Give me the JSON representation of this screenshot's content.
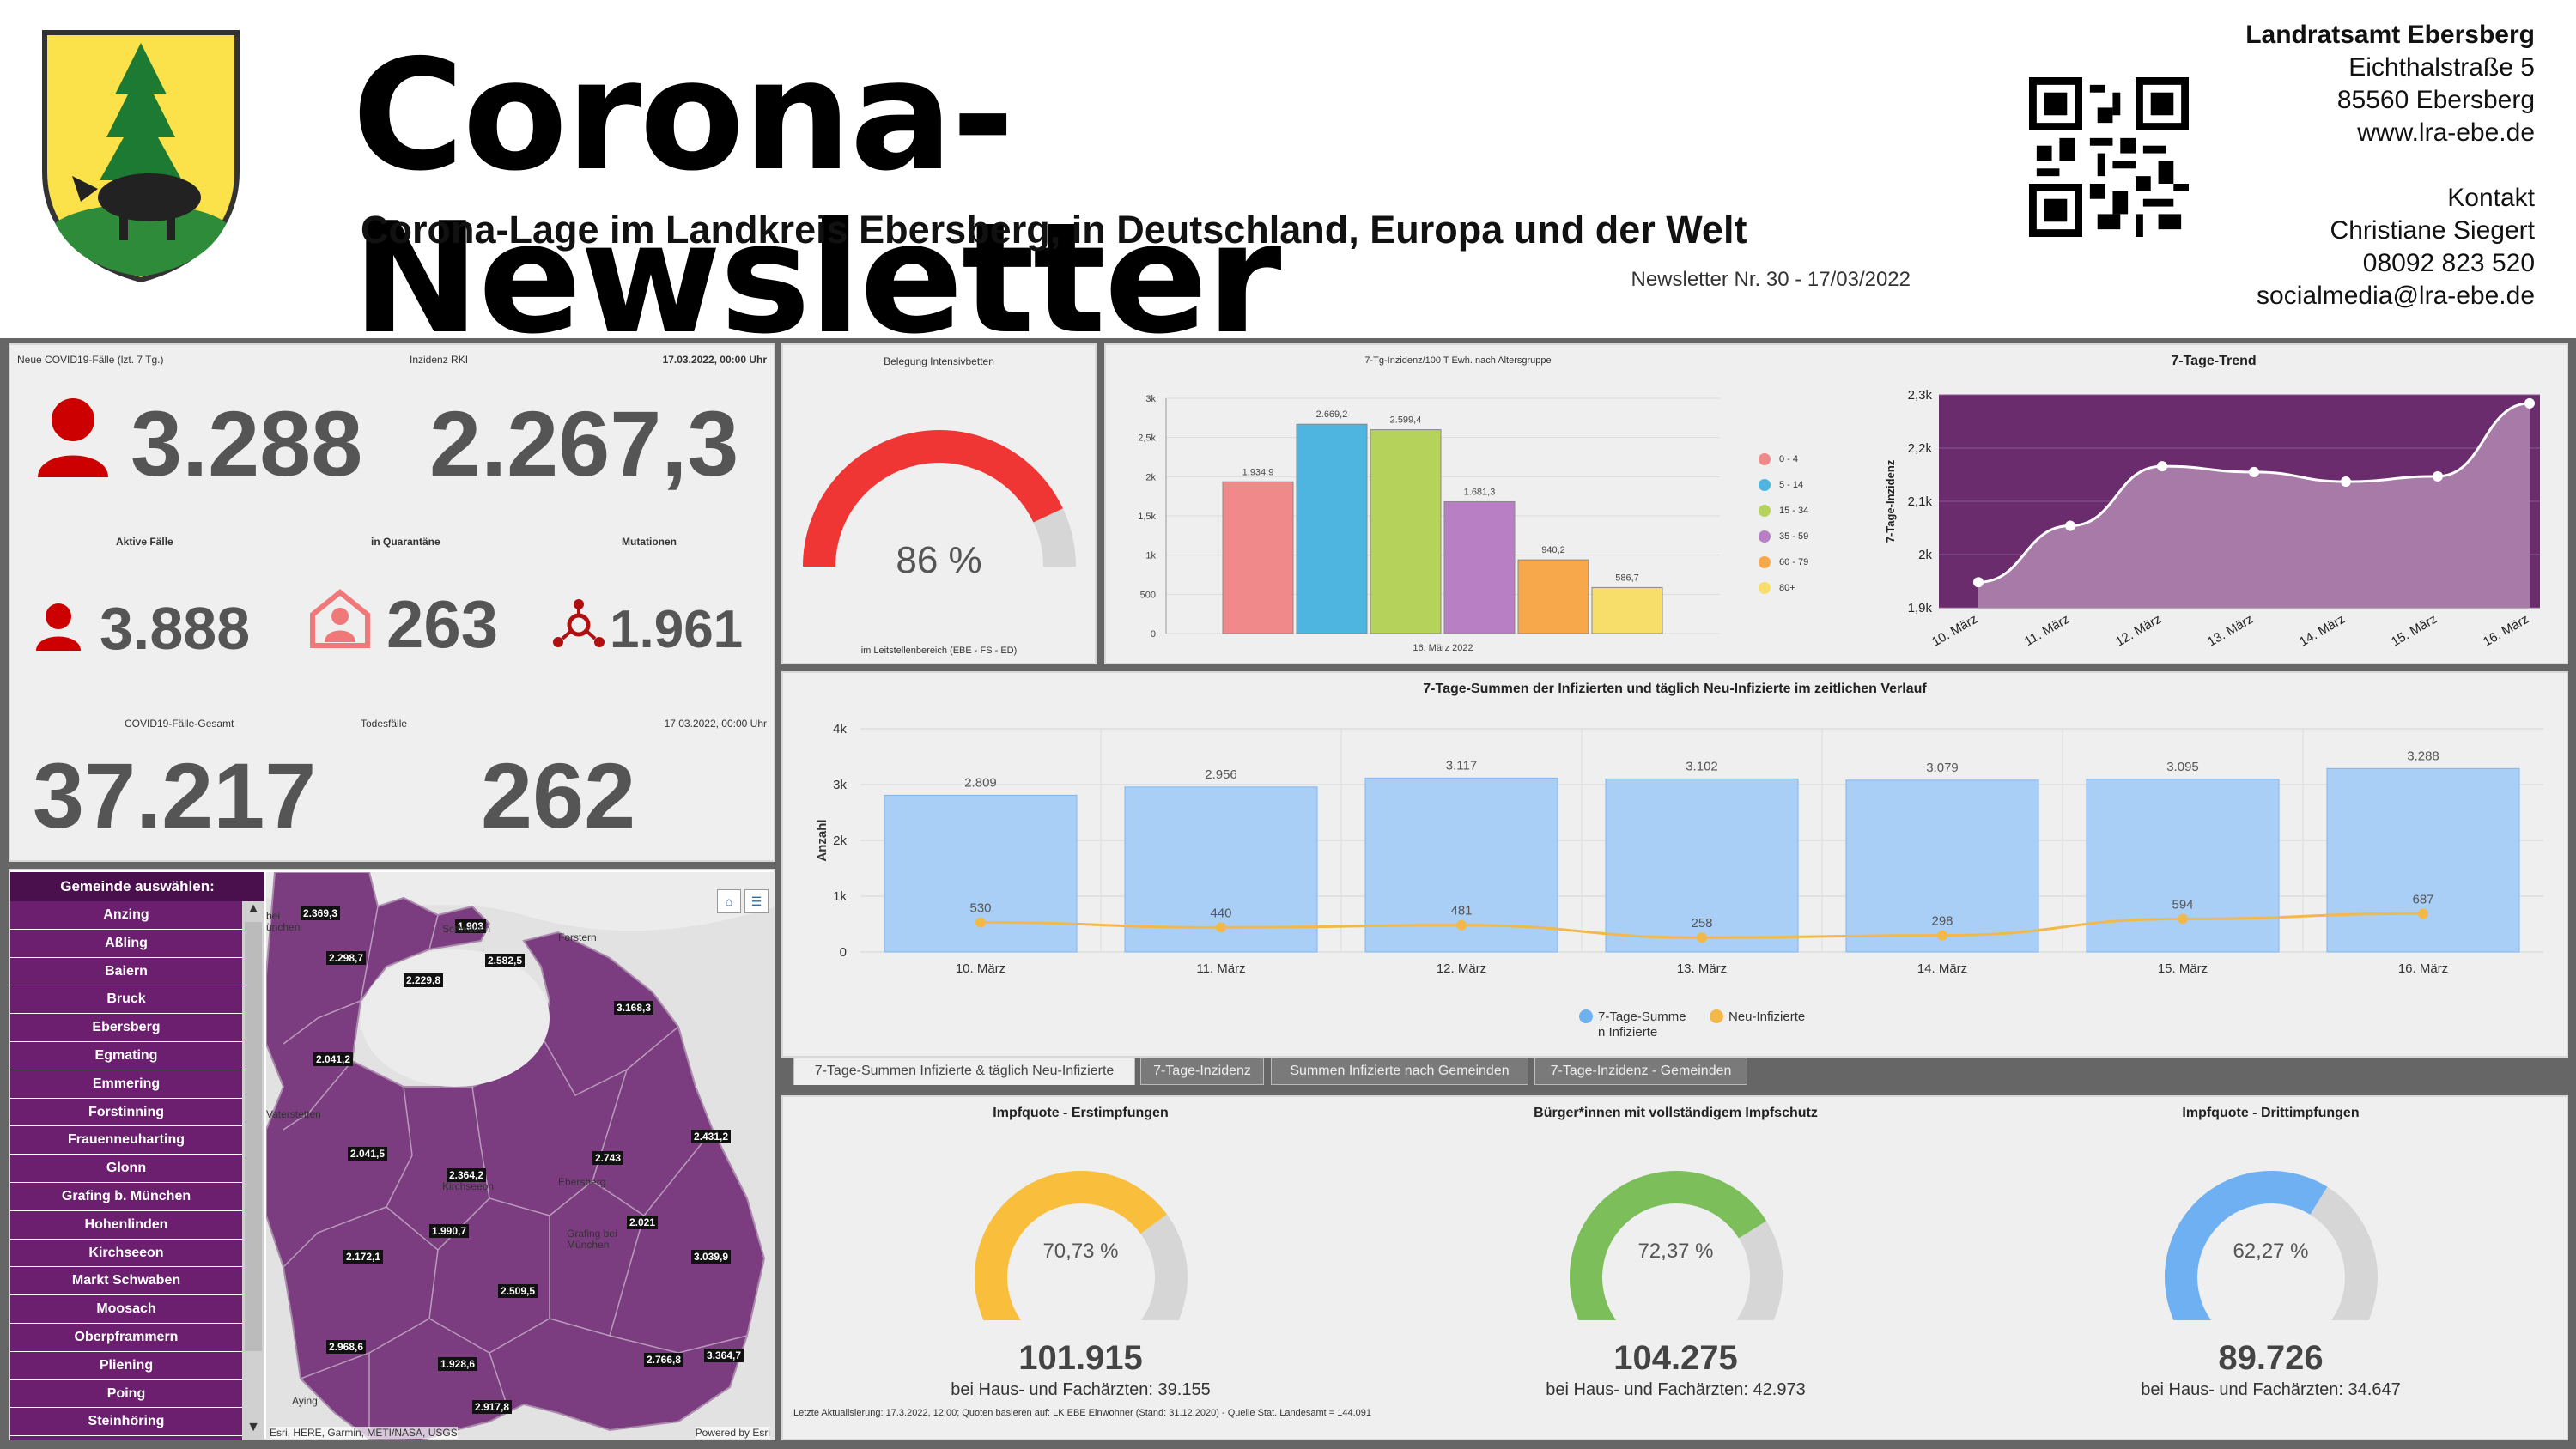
{
  "header": {
    "title": "Corona-Newsletter",
    "subtitle": "Corona-Lage im Landkreis Ebersberg, in Deutschland, Europa und der Welt",
    "issue": "Newsletter Nr. 30 - 17/03/2022",
    "office": "Landratsamt Ebersberg",
    "address1": "Eichthalstraße 5",
    "address2": "85560 Ebersberg",
    "web": "www.lra-ebe.de",
    "contact_label": "Kontakt",
    "contact_name": "Christiane Siegert",
    "phone": "08092 823 520",
    "email": "socialmedia@lra-ebe.de"
  },
  "stats": {
    "new_cases_label": "Neue COVID19-Fälle (lzt. 7 Tg.)",
    "incidence_label": "Inzidenz RKI",
    "date_label": "17.03.2022, 00:00 Uhr",
    "new_cases": "3.288",
    "incidence": "2.267,3",
    "active_label": "Aktive Fälle",
    "quarantine_label": "in Quarantäne",
    "mutations_label": "Mutationen",
    "active": "3.888",
    "quarantine": "263",
    "mutations": "1.961",
    "total_label": "COVID19-Fälle-Gesamt",
    "deaths_label": "Todesfälle",
    "date2_label": "17.03.2022, 00:00 Uhr",
    "total": "37.217",
    "deaths": "262"
  },
  "icu": {
    "title": "Belegung Intensivbetten",
    "value_text": "86 %",
    "value": 86,
    "footer": "im Leitstellenbereich (EBE - FS - ED)",
    "color": "#f03535"
  },
  "age_chart": {
    "chart_data": {
      "type": "bar",
      "title": "7-Tg-Inzidenz/100 T Ewh. nach Altersgruppe",
      "xlabel": "16. März 2022",
      "categories": [
        "0 - 4",
        "5 - 14",
        "15 - 34",
        "35 - 59",
        "60 - 79",
        "80+"
      ],
      "values": [
        1934.9,
        2669.2,
        2599.4,
        1681.3,
        940.2,
        586.7
      ],
      "value_labels": [
        "1.934,9",
        "2.669,2",
        "2.599,4",
        "1.681,3",
        "940,2",
        "586,7"
      ],
      "colors": [
        "#f08a8a",
        "#4db5e0",
        "#b5d35a",
        "#b87fc4",
        "#f7a84a",
        "#f7de6b"
      ],
      "ylim": [
        0,
        3000
      ],
      "yticks": [
        "0",
        "500",
        "1k",
        "1,5k",
        "2k",
        "2,5k",
        "3k"
      ]
    }
  },
  "trend_chart": {
    "chart_data": {
      "type": "area",
      "title": "7-Tage-Trend",
      "ylabel": "7-Tage-Inzidenz",
      "x": [
        "10. März",
        "11. März",
        "12. März",
        "13. März",
        "14. März",
        "15. März",
        "16. März"
      ],
      "values": [
        1948,
        2054,
        2166,
        2155,
        2137,
        2147,
        2284
      ],
      "ylim": [
        1900,
        2300
      ],
      "yticks": [
        "1,9k",
        "2k",
        "2,1k",
        "2,2k",
        "2,3k"
      ]
    }
  },
  "sums_chart": {
    "chart_data": {
      "type": "bar",
      "title": "7-Tage-Summen der Infizierten und täglich Neu-Infizierte im zeitlichen Verlauf",
      "ylabel": "Anzahl",
      "categories": [
        "10. März",
        "11. März",
        "12. März",
        "13. März",
        "14. März",
        "15. März",
        "16. März"
      ],
      "series": [
        {
          "name": "7-Tage-Summe n Infizierte",
          "values": [
            2809,
            2956,
            3117,
            3102,
            3079,
            3095,
            3288
          ],
          "labels": [
            "2.809",
            "2.956",
            "3.117",
            "3.102",
            "3.079",
            "3.095",
            "3.288"
          ]
        },
        {
          "name": "Neu-Infizierte",
          "values": [
            530,
            440,
            481,
            258,
            298,
            594,
            687
          ],
          "labels": [
            "530",
            "440",
            "481",
            "258",
            "298",
            "594",
            "687"
          ]
        }
      ],
      "ylim": [
        0,
        4000
      ],
      "yticks": [
        "0",
        "1k",
        "2k",
        "3k",
        "4k"
      ],
      "legend": [
        "7-Tage-Summe",
        "n Infizierte",
        "Neu-Infizierte"
      ]
    }
  },
  "tabs": [
    "7-Tage-Summen Infizierte & täglich Neu-Infizierte",
    "7-Tage-Inzidenz",
    "Summen Infizierte nach Gemeinden",
    "7-Tage-Inzidenz - Gemeinden"
  ],
  "vaccination": [
    {
      "title": "Impfquote  - Erstimpfungen",
      "percent_text": "70,73 %",
      "percent": 70.73,
      "count": "101.915",
      "sub": "bei Haus- und Fachärzten: 39.155",
      "color": "#f9bf3c"
    },
    {
      "title": "Bürger*innen mit vollständigem Impfschutz",
      "percent_text": "72,37 %",
      "percent": 72.37,
      "count": "104.275",
      "sub": "bei Haus- und Fachärzten: 42.973",
      "color": "#7cbf5a"
    },
    {
      "title": "Impfquote  - Drittimpfungen",
      "percent_text": "62,27 %",
      "percent": 62.27,
      "count": "89.726",
      "sub": "bei Haus- und Fachärzten: 34.647",
      "color": "#6fb0f2"
    }
  ],
  "update_note": "Letzte Aktualisierung: 17.3.2022, 12:00; Quoten basieren auf: LK EBE Einwohner (Stand: 31.12.2020) - Quelle Stat. Landesamt = 144.091",
  "gemeinde": {
    "header": "Gemeinde auswählen:",
    "items": [
      "Anzing",
      "Aßling",
      "Baiern",
      "Bruck",
      "Ebersberg",
      "Egmating",
      "Emmering",
      "Forstinning",
      "Frauenneuharting",
      "Glonn",
      "Grafing b. München",
      "Hohenlinden",
      "Kirchseeon",
      "Markt Schwaben",
      "Moosach",
      "Oberpframmern",
      "Pliening",
      "Poing",
      "Steinhöring"
    ]
  },
  "map": {
    "attribution": "Esri, HERE, Garmin, METI/NASA, USGS",
    "powered": "Powered by Esri",
    "place_labels": [
      "Forstern",
      "Vaterstetten",
      "Aying",
      "Ebersberg",
      "Grafing bei München",
      "Kirchseeon",
      "Schwaben",
      "bei",
      "ünchen"
    ],
    "value_labels": [
      "2.369,3",
      "1.903",
      "2.582,5",
      "2.298,7",
      "2.229,8",
      "3.168,3",
      "2.041,2",
      "2.431,2",
      "2.743",
      "2.041,5",
      "2.364,2",
      "2.021",
      "1.990,7",
      "2.172,1",
      "2.509,5",
      "3.039,9",
      "2.968,6",
      "1.928,6",
      "2.766,8",
      "3.364,7",
      "2.917,8"
    ]
  }
}
